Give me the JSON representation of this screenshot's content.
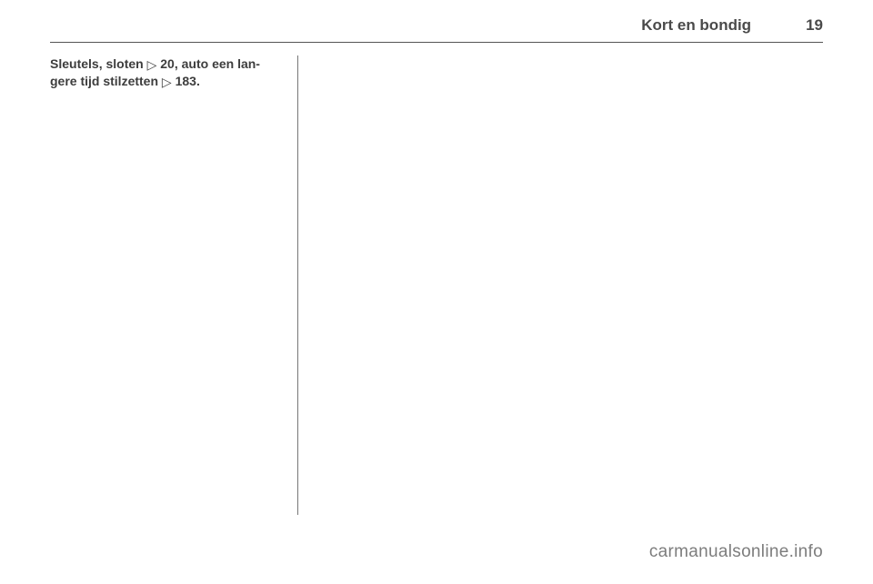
{
  "header": {
    "title": "Kort en bondig",
    "page_number": "19"
  },
  "body": {
    "line1_part1": "Sleutels, sloten ",
    "arrow1": "▷",
    "ref1": " 20",
    "line1_part2": ", auto een lan-",
    "line2_part1": "gere tijd stilzetten ",
    "arrow2": "▷",
    "ref2": " 183",
    "period": "."
  },
  "watermark": "carmanualsonline.info",
  "colors": {
    "text": "#3d3d3d",
    "header_text": "#4a4a4a",
    "rule": "#555555",
    "vline": "#777777",
    "watermark": "#7d7d7d",
    "background": "#ffffff"
  }
}
